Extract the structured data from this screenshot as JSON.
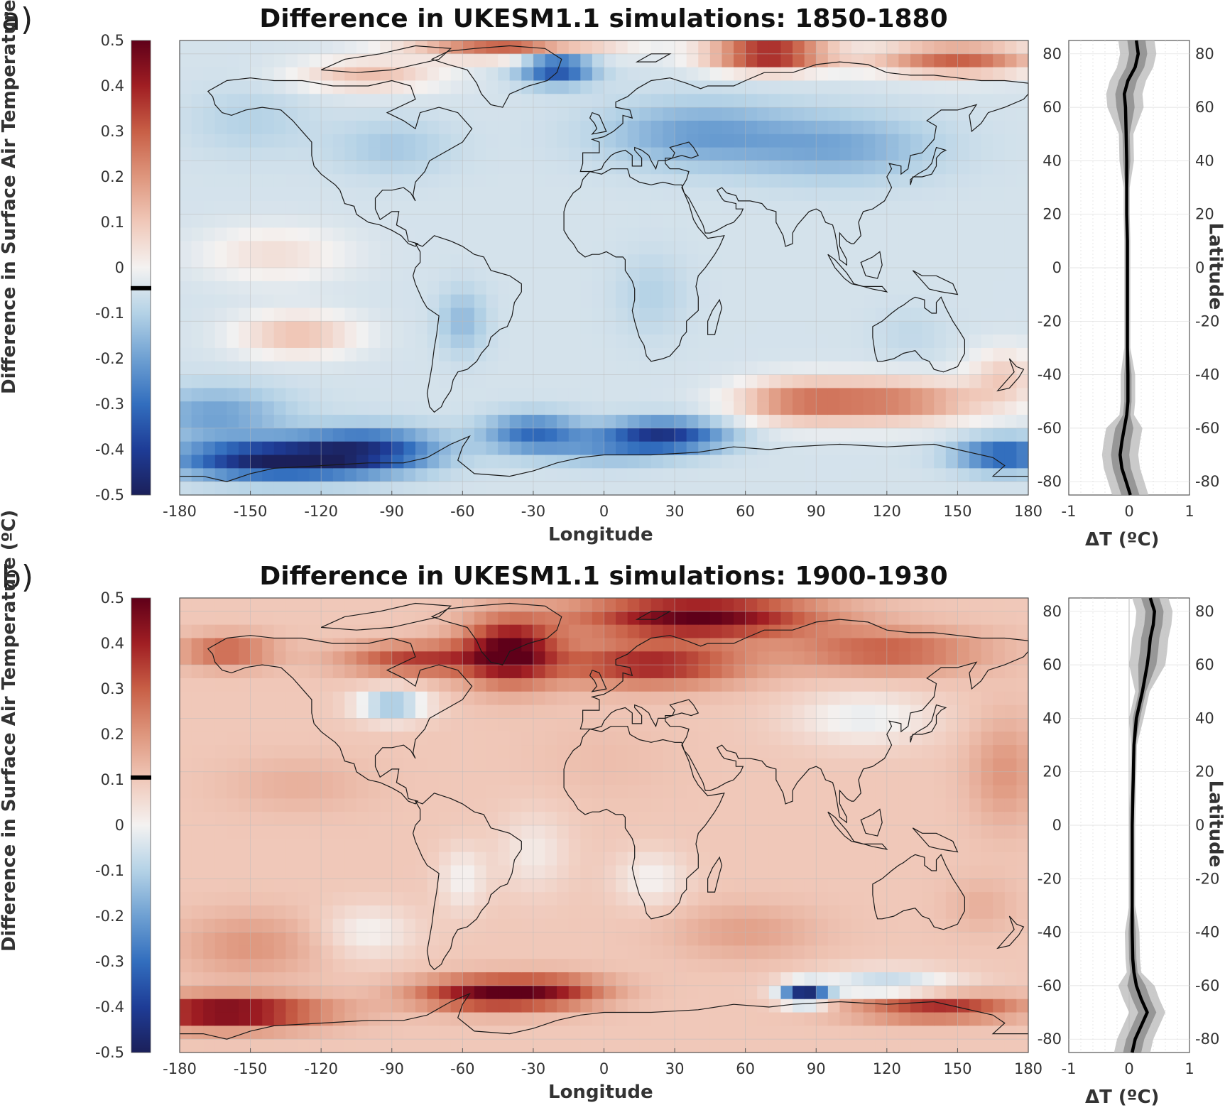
{
  "panels": [
    {
      "letter": "a)",
      "title": "Difference in UKESM1.1 simulations: 1850-1880",
      "colorbar_label": "Difference in Surface Air Temperature (ºC)",
      "colorbar_ticks": [
        "0.5",
        "0.4",
        "0.3",
        "0.2",
        "0.1",
        "0",
        "-0.1",
        "-0.2",
        "-0.3",
        "-0.4",
        "-0.5"
      ],
      "global_mean_marker": -0.045,
      "x_axis_label": "Longitude",
      "x_ticks": [
        "-180",
        "-150",
        "-120",
        "-90",
        "-60",
        "-30",
        "0",
        "30",
        "60",
        "90",
        "120",
        "150",
        "180"
      ],
      "lat_ticks": [
        "80",
        "60",
        "40",
        "20",
        "0",
        "-20",
        "-40",
        "-60",
        "-80"
      ],
      "zonal_x_ticks": [
        "-1",
        "0",
        "1"
      ],
      "zonal_x_label": "ΔT (ºC)",
      "zonal_y_label": "Latitude",
      "sign": "cool"
    },
    {
      "letter": "b)",
      "title": "Difference in UKESM1.1 simulations: 1900-1930",
      "colorbar_label": "Difference in Surface Air Temperature (ºC)",
      "colorbar_ticks": [
        "0.5",
        "0.4",
        "0.3",
        "0.2",
        "0.1",
        "0",
        "-0.1",
        "-0.2",
        "-0.3",
        "-0.4",
        "-0.5"
      ],
      "global_mean_marker": 0.105,
      "x_axis_label": "Longitude",
      "x_ticks": [
        "-180",
        "-150",
        "-120",
        "-90",
        "-60",
        "-30",
        "0",
        "30",
        "60",
        "90",
        "120",
        "150",
        "180"
      ],
      "lat_ticks": [
        "80",
        "60",
        "40",
        "20",
        "0",
        "-20",
        "-40",
        "-60",
        "-80"
      ],
      "zonal_x_ticks": [
        "-1",
        "0",
        "1"
      ],
      "zonal_x_label": "ΔT (ºC)",
      "zonal_y_label": "Latitude",
      "sign": "warm"
    }
  ],
  "colors": {
    "dark_red": "#67001f",
    "red": "#c0492f",
    "white": "#f4f2f1",
    "blue": "#3a78b8",
    "dark_blue": "#1b2a6b",
    "coast": "#1a1a1a",
    "zonal_mean": "#000000",
    "zonal_spread": "#9a9a9a"
  },
  "chart_data": [
    {
      "type": "line",
      "title": "",
      "xlabel": "ΔT (ºC)",
      "ylabel": "Latitude",
      "xlim": [
        -1,
        1
      ],
      "ylim": [
        -85,
        85
      ],
      "series": [
        {
          "name": "",
          "y": [
            -85,
            -80,
            -75,
            -70,
            -65,
            -60,
            -55,
            -50,
            -40,
            -30,
            -20,
            -10,
            0,
            10,
            20,
            30,
            40,
            50,
            60,
            65,
            70,
            75,
            80,
            85
          ],
          "x": [
            0.02,
            -0.05,
            -0.12,
            -0.15,
            -0.12,
            -0.08,
            -0.04,
            -0.02,
            -0.02,
            -0.03,
            -0.03,
            -0.03,
            -0.03,
            -0.03,
            -0.04,
            -0.04,
            -0.04,
            -0.05,
            -0.06,
            -0.08,
            -0.02,
            0.1,
            0.15,
            0.12
          ]
        }
      ]
    },
    {
      "type": "line",
      "title": "",
      "xlabel": "ΔT (ºC)",
      "ylabel": "Latitude",
      "xlim": [
        -1,
        1
      ],
      "ylim": [
        -85,
        85
      ],
      "series": [
        {
          "name": "",
          "y": [
            -85,
            -80,
            -75,
            -70,
            -65,
            -60,
            -55,
            -50,
            -40,
            -30,
            -20,
            -10,
            0,
            10,
            20,
            30,
            40,
            50,
            60,
            65,
            70,
            75,
            80,
            85
          ],
          "x": [
            0.05,
            0.1,
            0.2,
            0.3,
            0.2,
            0.12,
            0.08,
            0.06,
            0.05,
            0.05,
            0.05,
            0.05,
            0.05,
            0.06,
            0.07,
            0.08,
            0.12,
            0.22,
            0.3,
            0.33,
            0.35,
            0.4,
            0.42,
            0.35
          ]
        }
      ]
    }
  ]
}
